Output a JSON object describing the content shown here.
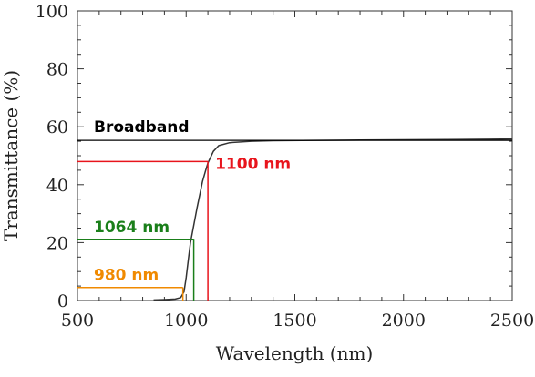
{
  "chart_data": {
    "type": "line",
    "title": "",
    "xlabel": "Wavelength (nm)",
    "ylabel": "Transmittance (%)",
    "xlim": [
      500,
      2500
    ],
    "ylim": [
      0,
      100
    ],
    "xticks": [
      500,
      1000,
      1500,
      2000,
      2500
    ],
    "yticks": [
      0,
      20,
      40,
      60,
      80,
      100
    ],
    "grid": false,
    "series": [
      {
        "name": "",
        "color": "#333333",
        "x": [
          850,
          900,
          950,
          975,
          990,
          1000,
          1010,
          1020,
          1030,
          1040,
          1050,
          1064,
          1075,
          1090,
          1100,
          1125,
          1150,
          1200,
          1300,
          1400,
          1600,
          1800,
          2000,
          2200,
          2400,
          2500
        ],
        "y": [
          0.2,
          0.3,
          0.5,
          1.0,
          3,
          8,
          14,
          20,
          24,
          28,
          32,
          37,
          41,
          45,
          47.5,
          51.5,
          53.5,
          54.5,
          55.0,
          55.2,
          55.3,
          55.4,
          55.5,
          55.6,
          55.7,
          55.8
        ]
      }
    ],
    "annotations": [
      {
        "label": "Broadband",
        "color": "#000000",
        "y": 55.3,
        "x_marker": null
      },
      {
        "label": "1100 nm",
        "color": "#e8141c",
        "y": 48.0,
        "x_marker": 1100
      },
      {
        "label": "1064 nm",
        "color": "#1a7f1a",
        "y": 21.0,
        "x_marker": 1035
      },
      {
        "label": "980 nm",
        "color": "#f08a00",
        "y": 4.5,
        "x_marker": 985
      }
    ]
  }
}
